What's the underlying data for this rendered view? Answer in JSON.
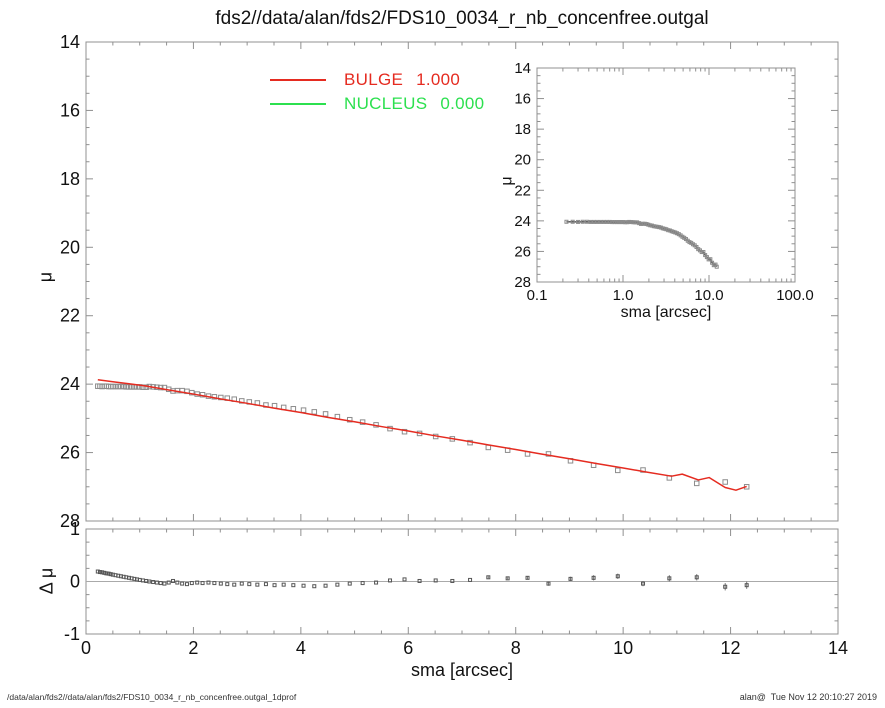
{
  "title": "fds2//data/alan/fds2/FDS10_0034_r_nb_concenfree.outgal",
  "labels": {
    "main_ylabel": "μ",
    "residual_ylabel": "Δ μ",
    "xlabel": "sma [arcsec]",
    "inset_xlabel": "sma [arcsec]",
    "inset_ylabel": "μ"
  },
  "legend": [
    {
      "name": "BULGE",
      "value": "1.000",
      "color": "#e52b20"
    },
    {
      "name": "NUCLEUS",
      "value": "0.000",
      "color": "#2ce04f"
    }
  ],
  "footer": {
    "left": "/data/alan/fds2//data/alan/fds2/FDS10_0034_r_nb_concenfree.outgal_1dprof",
    "right": "alan@  Tue Nov 12 20:10:27 2019"
  },
  "colors": {
    "model_red": "#e52b20",
    "nucleus_green": "#2ce04f",
    "marker": "#8c8c8c",
    "marker_dark": "#555555",
    "inset_line": "#4a4a4a",
    "axis": "#909090",
    "text": "#111111",
    "zero_line": "#aaaaaa",
    "error_bar": "#777777"
  },
  "chart_data": {
    "type": "scatter",
    "title": "fds2//data/alan/fds2/FDS10_0034_r_nb_concenfree.outgal",
    "xlabel": "sma [arcsec]",
    "ylabel": "μ",
    "panels": {
      "main": {
        "ylabel": "μ",
        "xlim": [
          0,
          14
        ],
        "ylim_top_bottom": [
          14,
          28
        ],
        "xticks": [
          0,
          2,
          4,
          6,
          8,
          10,
          12,
          14
        ],
        "show_x_tick_labels": false,
        "yticks": [
          14,
          16,
          18,
          20,
          22,
          24,
          26,
          28
        ],
        "show_y_tick_labels": true,
        "x_minor_step": 0.5,
        "y_minor_step": 0.5,
        "series": [
          "profile_squares",
          "bulge_model_line"
        ]
      },
      "inset": {
        "xlabel": "sma [arcsec]",
        "ylabel": "μ",
        "xscale": "log",
        "xlim": [
          0.1,
          100
        ],
        "ylim_top_bottom": [
          14,
          28
        ],
        "xticks": [
          0.1,
          1,
          10,
          100
        ],
        "xticklabels": [
          "0.1",
          "1.0",
          "10.0",
          "100.0"
        ],
        "show_x_tick_labels": true,
        "yticks": [
          14,
          16,
          18,
          20,
          22,
          24,
          26,
          28
        ],
        "show_y_tick_labels": true,
        "y_minor_step": 0.5,
        "series": [
          "profile_line",
          "profile_squares_small"
        ]
      },
      "residual": {
        "xlabel": "sma [arcsec]",
        "ylabel": "Δ μ",
        "xlim": [
          0,
          14
        ],
        "ylim_top_bottom": [
          1,
          -1
        ],
        "xticks": [
          0,
          2,
          4,
          6,
          8,
          10,
          12,
          14
        ],
        "xticklabels": [
          "0",
          "2",
          "4",
          "6",
          "8",
          "10",
          "12",
          "14"
        ],
        "show_x_tick_labels": true,
        "yticks": [
          1,
          0,
          -1
        ],
        "show_y_tick_labels": true,
        "x_minor_step": 0.5,
        "y_minor_step": 0.25,
        "zero_line": true,
        "series": [
          "residual_squares"
        ]
      }
    },
    "profile": {
      "sma": [
        0.22,
        0.26,
        0.3,
        0.34,
        0.38,
        0.42,
        0.46,
        0.5,
        0.55,
        0.6,
        0.65,
        0.7,
        0.75,
        0.8,
        0.85,
        0.9,
        0.95,
        1,
        1.06,
        1.12,
        1.18,
        1.25,
        1.32,
        1.39,
        1.46,
        1.54,
        1.62,
        1.7,
        1.79,
        1.88,
        1.97,
        2.07,
        2.17,
        2.28,
        2.39,
        2.51,
        2.63,
        2.76,
        2.9,
        3.04,
        3.19,
        3.35,
        3.51,
        3.68,
        3.86,
        4.05,
        4.25,
        4.46,
        4.68,
        4.91,
        5.15,
        5.4,
        5.66,
        5.93,
        6.21,
        6.51,
        6.82,
        7.15,
        7.49,
        7.85,
        8.22,
        8.61,
        9.02,
        9.45,
        9.9,
        10.37,
        10.86,
        11.37,
        11.9,
        12.3
      ],
      "mu": [
        24.06,
        24.06,
        24.07,
        24.06,
        24.06,
        24.07,
        24.07,
        24.07,
        24.07,
        24.07,
        24.07,
        24.07,
        24.08,
        24.08,
        24.08,
        24.08,
        24.08,
        24.08,
        24.09,
        24.09,
        24.07,
        24.08,
        24.09,
        24.1,
        24.1,
        24.15,
        24.2,
        24.19,
        24.19,
        24.21,
        24.25,
        24.29,
        24.31,
        24.35,
        24.37,
        24.39,
        24.41,
        24.44,
        24.49,
        24.52,
        24.55,
        24.61,
        24.63,
        24.68,
        24.72,
        24.76,
        24.81,
        24.87,
        24.95,
        25.04,
        25.11,
        25.19,
        25.3,
        25.39,
        25.44,
        25.53,
        25.6,
        25.71,
        25.85,
        25.93,
        26.04,
        26.04,
        26.24,
        26.37,
        26.52,
        26.51,
        26.74,
        26.9,
        26.86,
        27
      ],
      "dmu": [
        0.19,
        0.18,
        0.175,
        0.165,
        0.155,
        0.15,
        0.14,
        0.13,
        0.12,
        0.11,
        0.1,
        0.09,
        0.08,
        0.07,
        0.06,
        0.05,
        0.04,
        0.03,
        0.02,
        0.01,
        0,
        -0.01,
        -0.02,
        -0.03,
        -0.04,
        -0.02,
        0.01,
        -0.02,
        -0.04,
        -0.05,
        -0.03,
        -0.02,
        -0.03,
        -0.02,
        -0.03,
        -0.04,
        -0.05,
        -0.06,
        -0.04,
        -0.05,
        -0.06,
        -0.05,
        -0.07,
        -0.06,
        -0.07,
        -0.08,
        -0.09,
        -0.08,
        -0.06,
        -0.04,
        -0.03,
        -0.02,
        0.02,
        0.04,
        0.01,
        0.02,
        0.01,
        0.03,
        0.08,
        0.06,
        0.07,
        -0.04,
        0.05,
        0.07,
        0.1,
        -0.04,
        0.06,
        0.08,
        -0.1,
        -0.07
      ],
      "dmu_err": [
        0,
        0,
        0,
        0,
        0,
        0,
        0,
        0,
        0,
        0,
        0,
        0,
        0,
        0,
        0,
        0,
        0,
        0,
        0,
        0,
        0,
        0,
        0,
        0,
        0,
        0,
        0,
        0,
        0,
        0,
        0,
        0,
        0,
        0,
        0,
        0,
        0,
        0,
        0,
        0,
        0,
        0,
        0,
        0,
        0,
        0,
        0,
        0,
        0,
        0,
        0,
        0,
        0,
        0,
        0,
        0,
        0,
        0,
        0.02,
        0.02,
        0.03,
        0.04,
        0.04,
        0.05,
        0.05,
        0.05,
        0.06,
        0.06,
        0.07,
        0.07
      ]
    },
    "bulge_model": {
      "sma": [
        0.22,
        0.5,
        0.8,
        1.1,
        1.5,
        2,
        2.5,
        3,
        3.5,
        4,
        4.5,
        5,
        5.5,
        6,
        6.5,
        7,
        7.5,
        8,
        8.5,
        9,
        9.5,
        10,
        10.4,
        10.9,
        11.1,
        11.4,
        11.6,
        11.9,
        12.1,
        12.3
      ],
      "mu": [
        23.87,
        23.93,
        23.99,
        24.05,
        24.16,
        24.29,
        24.43,
        24.56,
        24.7,
        24.83,
        24.97,
        25.1,
        25.24,
        25.37,
        25.51,
        25.64,
        25.78,
        25.91,
        26.05,
        26.18,
        26.32,
        26.45,
        26.56,
        26.69,
        26.63,
        26.8,
        26.73,
        27.02,
        27.1,
        26.99
      ]
    },
    "legend": [
      {
        "label": "BULGE",
        "value": "1.000"
      },
      {
        "label": "NUCLEUS",
        "value": "0.000"
      }
    ]
  }
}
